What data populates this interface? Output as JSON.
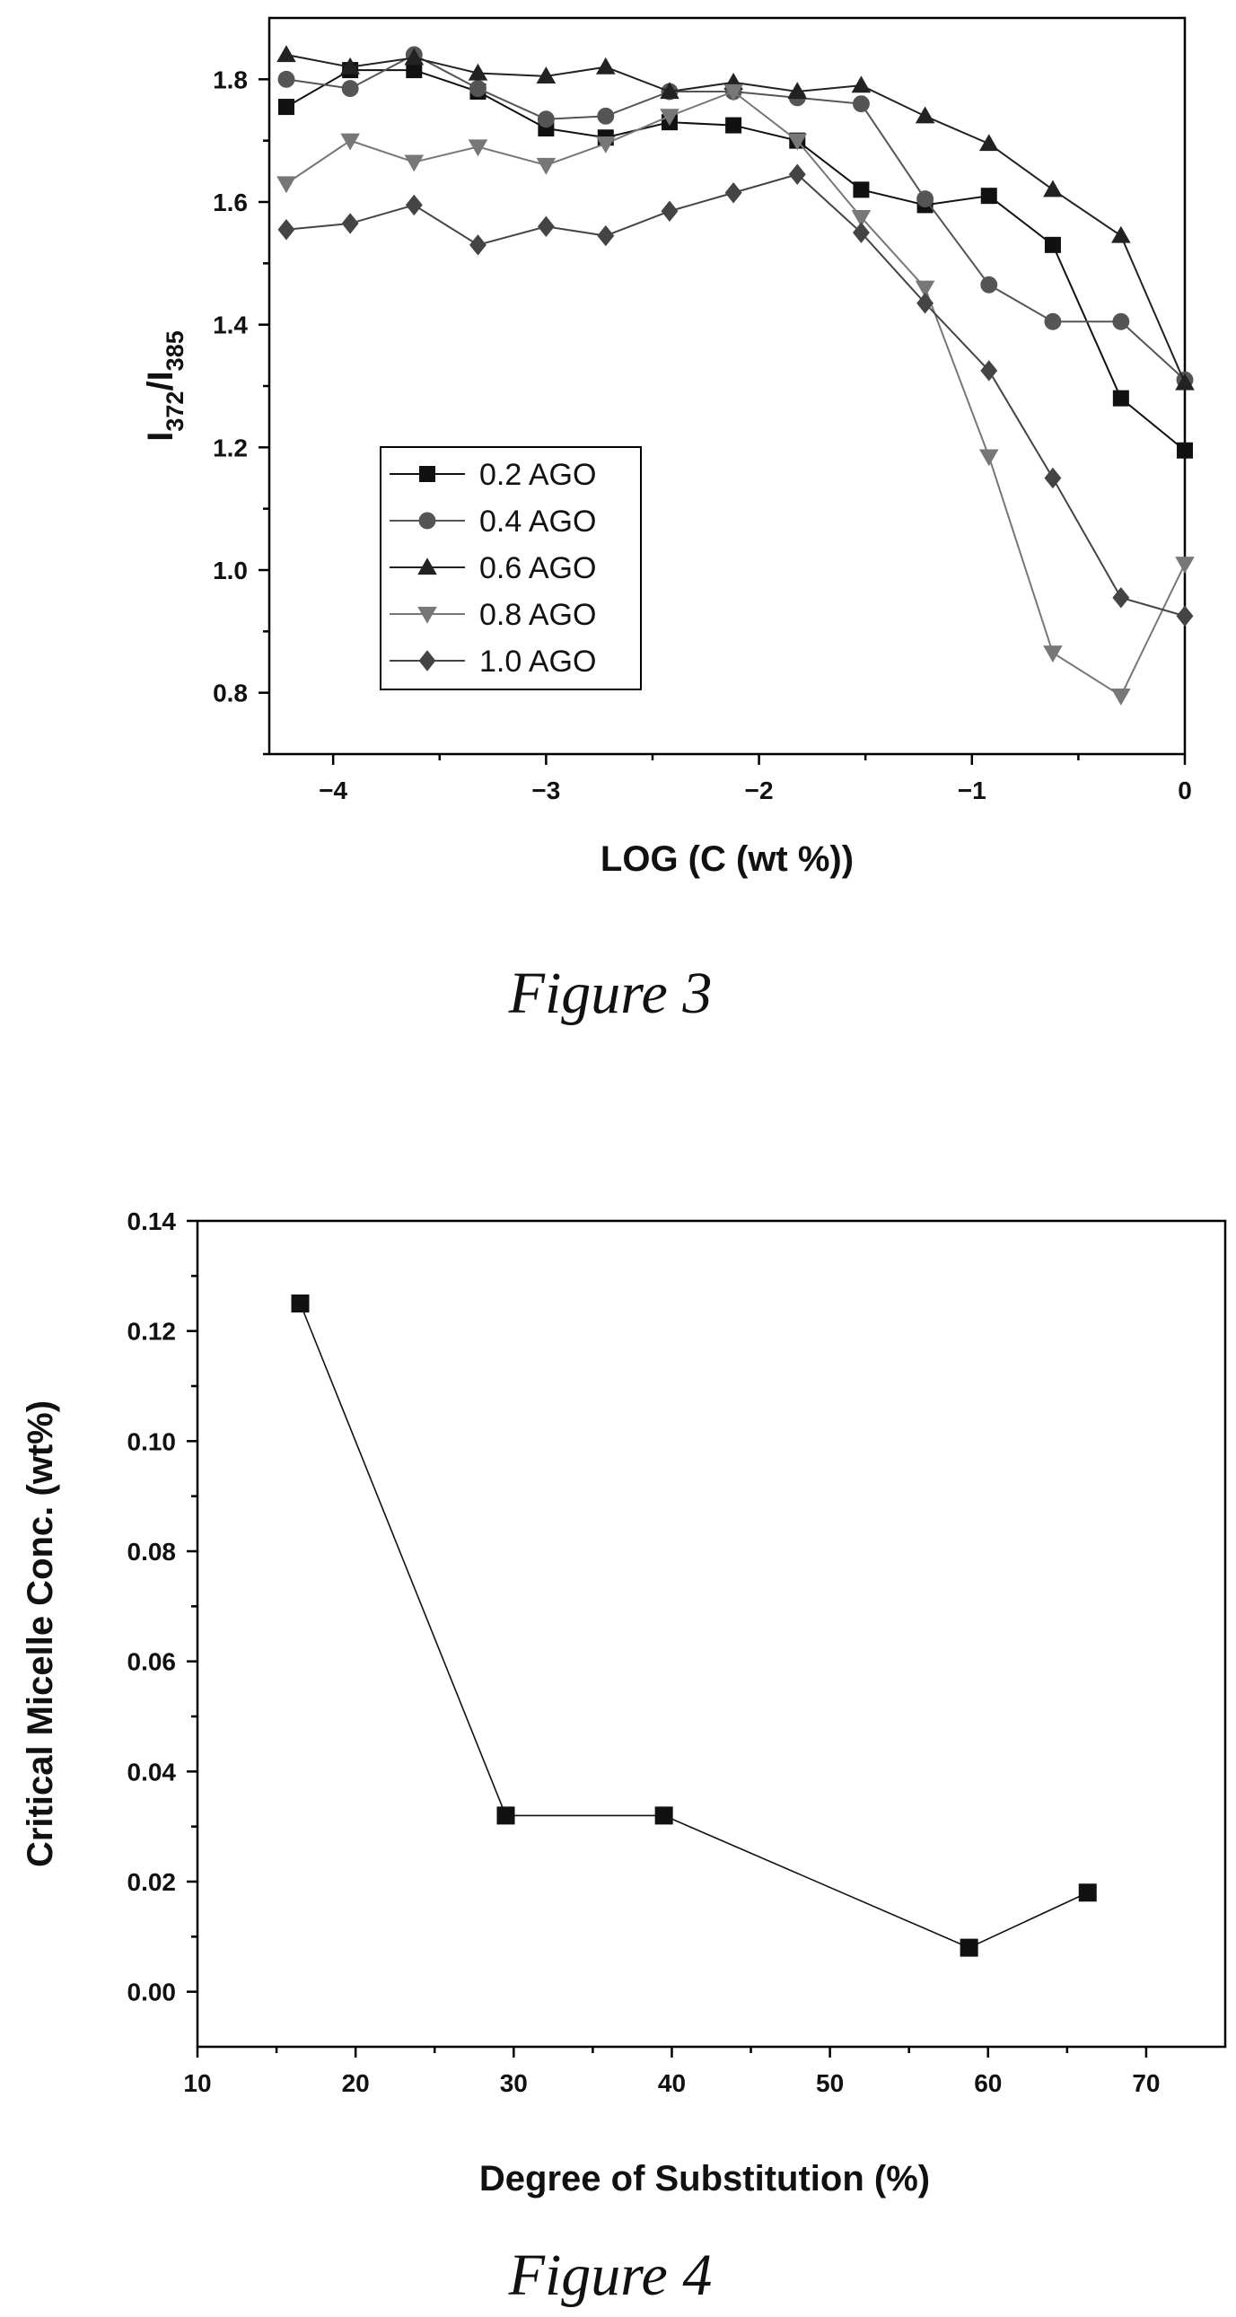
{
  "chart_data": [
    {
      "type": "line",
      "caption": "Figure 3",
      "xlabel": "LOG (C (wt %))",
      "ylabel": {
        "main": "I",
        "sub1": "372",
        "sep": "/I",
        "sub2": "385"
      },
      "xlim": [
        -4.3,
        0
      ],
      "ylim": [
        0.7,
        1.9
      ],
      "xticks": [
        -4,
        -3,
        -2,
        -1,
        0
      ],
      "yticks": [
        0.8,
        1.0,
        1.2,
        1.4,
        1.6,
        1.8
      ],
      "ytick_labels": [
        "0.8",
        "1.0",
        "1.2",
        "1.4",
        "1.6",
        "1.8"
      ],
      "x": [
        -4.22,
        -3.92,
        -3.62,
        -3.32,
        -3.0,
        -2.72,
        -2.42,
        -2.12,
        -1.82,
        -1.52,
        -1.22,
        -0.92,
        -0.62,
        -0.3,
        0.0
      ],
      "legend_position": "lower-left",
      "series": [
        {
          "name": "0.2 AGO",
          "marker": "square",
          "color": "#111111",
          "values": [
            1.755,
            1.815,
            1.815,
            1.78,
            1.72,
            1.705,
            1.73,
            1.725,
            1.7,
            1.62,
            1.595,
            1.61,
            1.53,
            1.28,
            1.195
          ]
        },
        {
          "name": "0.4 AGO",
          "marker": "circle",
          "color": "#555555",
          "values": [
            1.8,
            1.785,
            1.84,
            1.785,
            1.735,
            1.74,
            1.78,
            1.78,
            1.77,
            1.76,
            1.605,
            1.465,
            1.405,
            1.405,
            1.31
          ]
        },
        {
          "name": "0.6 AGO",
          "marker": "triangle-up",
          "color": "#222222",
          "values": [
            1.84,
            1.82,
            1.835,
            1.81,
            1.805,
            1.82,
            1.78,
            1.795,
            1.78,
            1.79,
            1.74,
            1.695,
            1.62,
            1.545,
            1.305
          ]
        },
        {
          "name": "0.8 AGO",
          "marker": "triangle-down",
          "color": "#777777",
          "values": [
            1.63,
            1.7,
            1.665,
            1.69,
            1.66,
            1.695,
            1.74,
            1.78,
            1.7,
            1.575,
            1.46,
            1.185,
            0.865,
            0.795,
            1.01
          ]
        },
        {
          "name": "1.0 AGO",
          "marker": "diamond",
          "color": "#444444",
          "values": [
            1.555,
            1.565,
            1.595,
            1.53,
            1.56,
            1.545,
            1.585,
            1.615,
            1.645,
            1.55,
            1.435,
            1.325,
            1.15,
            0.955,
            0.925
          ]
        }
      ]
    },
    {
      "type": "line",
      "caption": "Figure 4",
      "xlabel": "Degree of Substitution (%)",
      "ylabel": "Critical Micelle Conc. (wt%)",
      "xlim": [
        10,
        75
      ],
      "ylim": [
        -0.01,
        0.14
      ],
      "xticks": [
        10,
        20,
        30,
        40,
        50,
        60,
        70
      ],
      "yticks": [
        0.0,
        0.02,
        0.04,
        0.06,
        0.08,
        0.1,
        0.12,
        0.14
      ],
      "ytick_labels": [
        "0.00",
        "0.02",
        "0.04",
        "0.06",
        "0.08",
        "0.10",
        "0.12",
        "0.14"
      ],
      "x": [
        16.5,
        29.5,
        39.5,
        58.8,
        66.3
      ],
      "series": [
        {
          "marker": "square",
          "color": "#111111",
          "values": [
            0.125,
            0.032,
            0.032,
            0.008,
            0.018
          ]
        }
      ]
    }
  ]
}
